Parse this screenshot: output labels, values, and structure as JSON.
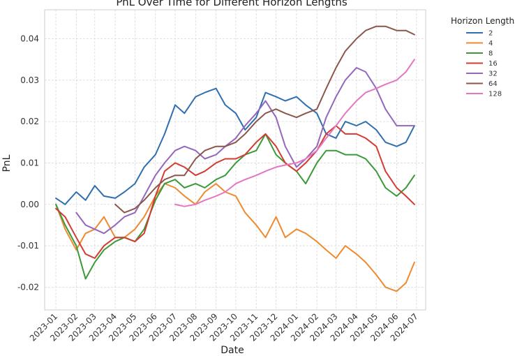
{
  "chart_data": {
    "type": "line",
    "title": "PnL Over Time for Different Horizon Lengths",
    "xlabel": "Date",
    "ylabel": "PnL",
    "x_ticks": [
      "2023-01",
      "2023-02",
      "2023-03",
      "2023-04",
      "2023-05",
      "2023-06",
      "2023-07",
      "2023-08",
      "2023-09",
      "2023-10",
      "2023-11",
      "2023-12",
      "2024-01",
      "2024-02",
      "2024-03",
      "2024-04",
      "2024-05",
      "2024-06",
      "2024-07"
    ],
    "y_ticks": [
      "-0.02",
      "-0.01",
      "0.00",
      "0.01",
      "0.02",
      "0.03",
      "0.04"
    ],
    "ylim": [
      -0.0255,
      0.047
    ],
    "xlim": [
      "2022-12-15",
      "2024-07-15"
    ],
    "grid": true,
    "legend": {
      "title": "Horizon Lengths",
      "placement": "outside-right-top"
    },
    "x": [
      "2023-01-01",
      "2023-01-15",
      "2023-02-01",
      "2023-02-15",
      "2023-03-01",
      "2023-03-15",
      "2023-04-01",
      "2023-04-15",
      "2023-05-01",
      "2023-05-15",
      "2023-06-01",
      "2023-06-15",
      "2023-07-01",
      "2023-07-15",
      "2023-08-01",
      "2023-08-15",
      "2023-09-01",
      "2023-09-15",
      "2023-10-01",
      "2023-10-15",
      "2023-11-01",
      "2023-11-15",
      "2023-12-01",
      "2023-12-15",
      "2024-01-01",
      "2024-01-15",
      "2024-02-01",
      "2024-02-15",
      "2024-03-01",
      "2024-03-15",
      "2024-04-01",
      "2024-04-15",
      "2024-05-01",
      "2024-05-15",
      "2024-06-01",
      "2024-06-15",
      "2024-06-28"
    ],
    "series": [
      {
        "name": "2",
        "color": "#2f6fb0",
        "values": [
          0.0015,
          0.0,
          0.003,
          0.001,
          0.0045,
          0.002,
          0.0015,
          0.003,
          0.005,
          0.009,
          0.012,
          0.017,
          0.024,
          0.022,
          0.026,
          0.027,
          0.028,
          0.024,
          0.022,
          0.018,
          0.021,
          0.027,
          0.026,
          0.025,
          0.026,
          0.024,
          0.022,
          0.017,
          0.016,
          0.02,
          0.019,
          0.02,
          0.018,
          0.015,
          0.014,
          0.015,
          0.019
        ]
      },
      {
        "name": "4",
        "color": "#ef8a2f",
        "values": [
          0.0,
          -0.006,
          -0.011,
          -0.007,
          -0.006,
          -0.003,
          -0.008,
          -0.008,
          -0.006,
          -0.003,
          0.002,
          0.005,
          0.004,
          0.002,
          0.0,
          0.003,
          0.005,
          0.003,
          0.002,
          -0.002,
          -0.005,
          -0.008,
          -0.003,
          -0.008,
          -0.006,
          -0.007,
          -0.009,
          -0.011,
          -0.013,
          -0.01,
          -0.012,
          -0.014,
          -0.017,
          -0.02,
          -0.021,
          -0.019,
          -0.014
        ]
      },
      {
        "name": "8",
        "color": "#3a9a3a",
        "values": [
          0.0,
          -0.005,
          -0.01,
          -0.018,
          -0.014,
          -0.011,
          -0.009,
          -0.008,
          -0.009,
          -0.006,
          0.001,
          0.005,
          0.006,
          0.004,
          0.005,
          0.004,
          0.006,
          0.007,
          0.01,
          0.012,
          0.013,
          0.017,
          0.012,
          0.01,
          0.008,
          0.005,
          0.01,
          0.013,
          0.013,
          0.012,
          0.012,
          0.011,
          0.008,
          0.004,
          0.002,
          0.004,
          0.007
        ]
      },
      {
        "name": "16",
        "color": "#d33b33",
        "values": [
          -0.001,
          -0.003,
          -0.008,
          -0.012,
          -0.013,
          -0.01,
          -0.008,
          -0.008,
          -0.009,
          -0.007,
          0.002,
          0.008,
          0.01,
          0.009,
          0.007,
          0.008,
          0.01,
          0.011,
          0.011,
          0.012,
          0.015,
          0.017,
          0.014,
          0.01,
          0.008,
          0.01,
          0.013,
          0.017,
          0.019,
          0.017,
          0.017,
          0.016,
          0.014,
          0.008,
          0.004,
          0.002,
          0.0
        ]
      },
      {
        "name": "32",
        "color": "#9467bd",
        "values": [
          null,
          null,
          -0.002,
          -0.005,
          -0.006,
          -0.007,
          -0.005,
          -0.003,
          -0.002,
          0.002,
          0.007,
          0.01,
          0.013,
          0.014,
          0.013,
          0.011,
          0.012,
          0.014,
          0.016,
          0.019,
          0.022,
          0.025,
          0.021,
          0.014,
          0.009,
          0.011,
          0.014,
          0.021,
          0.026,
          0.03,
          0.033,
          0.032,
          0.028,
          0.023,
          0.019,
          0.019,
          0.019
        ]
      },
      {
        "name": "64",
        "color": "#8c564b",
        "values": [
          null,
          null,
          null,
          null,
          null,
          null,
          0.0,
          -0.002,
          -0.001,
          0.001,
          0.004,
          0.006,
          0.007,
          0.007,
          0.011,
          0.013,
          0.014,
          0.014,
          0.015,
          0.017,
          0.02,
          0.022,
          0.023,
          0.022,
          0.021,
          0.022,
          0.023,
          0.028,
          0.033,
          0.037,
          0.04,
          0.042,
          0.043,
          0.043,
          0.042,
          0.042,
          0.041
        ]
      },
      {
        "name": "128",
        "color": "#e377c2",
        "values": [
          null,
          null,
          null,
          null,
          null,
          null,
          null,
          null,
          null,
          null,
          null,
          null,
          0.0,
          -0.0005,
          0.0,
          0.001,
          0.002,
          0.003,
          0.005,
          0.006,
          0.007,
          0.008,
          0.009,
          0.0095,
          0.01,
          0.011,
          0.013,
          0.016,
          0.019,
          0.022,
          0.025,
          0.027,
          0.028,
          0.029,
          0.03,
          0.032,
          0.035
        ]
      }
    ]
  }
}
